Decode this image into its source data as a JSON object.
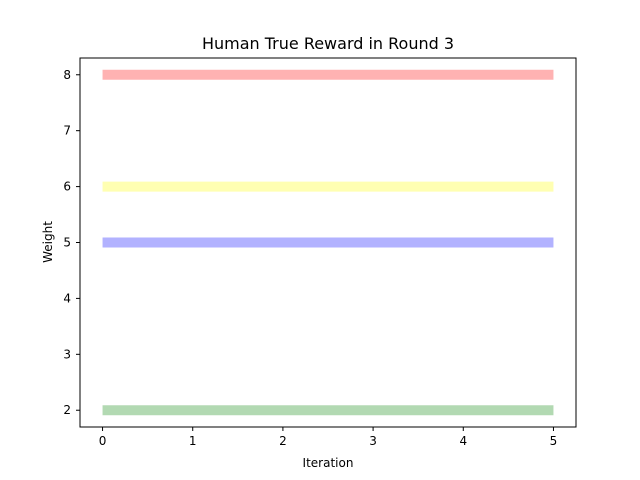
{
  "chart_data": {
    "type": "line",
    "title": "Human True Reward in Round 3",
    "xlabel": "Iteration",
    "ylabel": "Weight",
    "xlim": [
      -0.25,
      5.25
    ],
    "ylim": [
      1.7,
      8.3
    ],
    "xticks": [
      0,
      1,
      2,
      3,
      4,
      5
    ],
    "yticks": [
      2,
      3,
      4,
      5,
      6,
      7,
      8
    ],
    "grid": false,
    "series": [
      {
        "name": "red",
        "color": "#ff0000",
        "alpha": 0.3,
        "x": [
          0,
          1,
          2,
          3,
          4,
          5
        ],
        "values": [
          8,
          8,
          8,
          8,
          8,
          8
        ]
      },
      {
        "name": "yellow",
        "color": "#ffff00",
        "alpha": 0.3,
        "x": [
          0,
          1,
          2,
          3,
          4,
          5
        ],
        "values": [
          6,
          6,
          6,
          6,
          6,
          6
        ]
      },
      {
        "name": "blue",
        "color": "#0000ff",
        "alpha": 0.3,
        "x": [
          0,
          1,
          2,
          3,
          4,
          5
        ],
        "values": [
          5,
          5,
          5,
          5,
          5,
          5
        ]
      },
      {
        "name": "green",
        "color": "#008000",
        "alpha": 0.3,
        "x": [
          0,
          1,
          2,
          3,
          4,
          5
        ],
        "values": [
          2,
          2,
          2,
          2,
          2,
          2
        ]
      }
    ]
  }
}
